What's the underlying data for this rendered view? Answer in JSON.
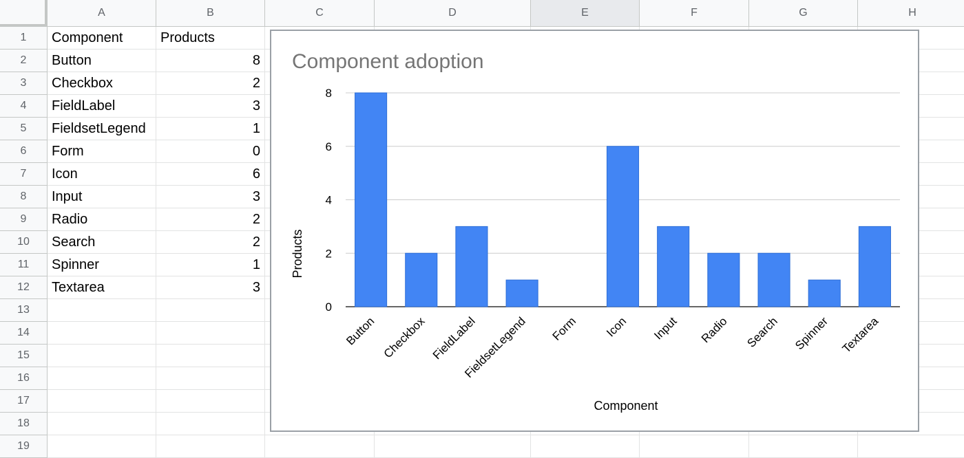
{
  "columns": [
    "A",
    "B",
    "C",
    "D",
    "E",
    "F",
    "G",
    "H"
  ],
  "active_column": "E",
  "rows": [
    "1",
    "2",
    "3",
    "4",
    "5",
    "6",
    "7",
    "8",
    "9",
    "10",
    "11",
    "12",
    "13",
    "14",
    "15",
    "16",
    "17",
    "18",
    "19"
  ],
  "table": {
    "header": [
      "Component",
      "Products"
    ],
    "rows": [
      [
        "Button",
        "8"
      ],
      [
        "Checkbox",
        "2"
      ],
      [
        "FieldLabel",
        "3"
      ],
      [
        "FieldsetLegend",
        "1"
      ],
      [
        "Form",
        "0"
      ],
      [
        "Icon",
        "6"
      ],
      [
        "Input",
        "3"
      ],
      [
        "Radio",
        "2"
      ],
      [
        "Search",
        "2"
      ],
      [
        "Spinner",
        "1"
      ],
      [
        "Textarea",
        "3"
      ]
    ]
  },
  "chart_data": {
    "type": "bar",
    "title": "Component adoption",
    "xlabel": "Component",
    "ylabel": "Products",
    "categories": [
      "Button",
      "Checkbox",
      "FieldLabel",
      "FieldsetLegend",
      "Form",
      "Icon",
      "Input",
      "Radio",
      "Search",
      "Spinner",
      "Textarea"
    ],
    "series": [
      {
        "values": [
          8,
          2,
          3,
          1,
          0,
          6,
          3,
          2,
          2,
          1,
          3
        ]
      }
    ],
    "ylim": [
      0,
      8
    ],
    "yticks": [
      "0",
      "2",
      "4",
      "6",
      "8"
    ],
    "grid": true,
    "bar_color": "#4285f4",
    "title_color": "#757575"
  }
}
